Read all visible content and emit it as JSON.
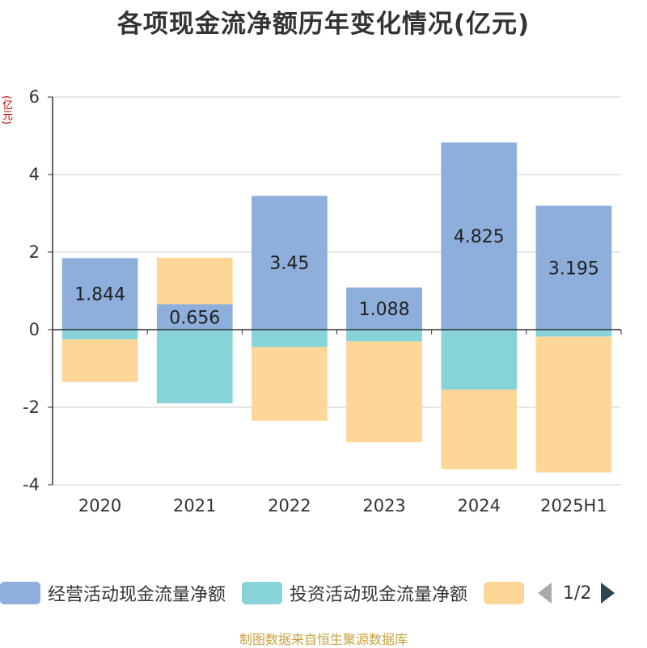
{
  "title": "各项现金流净额历年变化情况(亿元)",
  "source": "制图数据来自恒生聚源数据库",
  "legend": {
    "items": [
      {
        "label": "经营活动现金流量净额",
        "color": "#8eaedb"
      },
      {
        "label": "投资活动现金流量净额",
        "color": "#86d4d8"
      },
      {
        "label": "",
        "color": "#fed798"
      }
    ],
    "page": "1/2"
  },
  "chart_data": {
    "type": "bar",
    "stacked": true,
    "title": "各项现金流净额历年变化情况(亿元)",
    "ylabel": "(亿元)",
    "xlabel": "",
    "ylim": [
      -4,
      6
    ],
    "yticks": [
      -4,
      -2,
      0,
      2,
      4,
      6
    ],
    "grid": true,
    "legend_position": "bottom",
    "categories": [
      "2020",
      "2021",
      "2022",
      "2023",
      "2024",
      "2025H1"
    ],
    "series": [
      {
        "name": "经营活动现金流量净额",
        "color": "#8eaedb",
        "values": [
          1.844,
          0.656,
          3.45,
          1.088,
          4.825,
          3.195
        ],
        "labels": [
          "1.844",
          "0.656",
          "3.45",
          "1.088",
          "4.825",
          "3.195"
        ]
      },
      {
        "name": "投资活动现金流量净额",
        "color": "#86d4d8",
        "values": [
          -0.25,
          -1.9,
          -0.45,
          -0.3,
          -1.55,
          -0.18
        ]
      },
      {
        "color": "#fed798",
        "values": [
          -1.1,
          1.2,
          -1.9,
          -2.6,
          -2.05,
          -3.5
        ]
      }
    ]
  }
}
